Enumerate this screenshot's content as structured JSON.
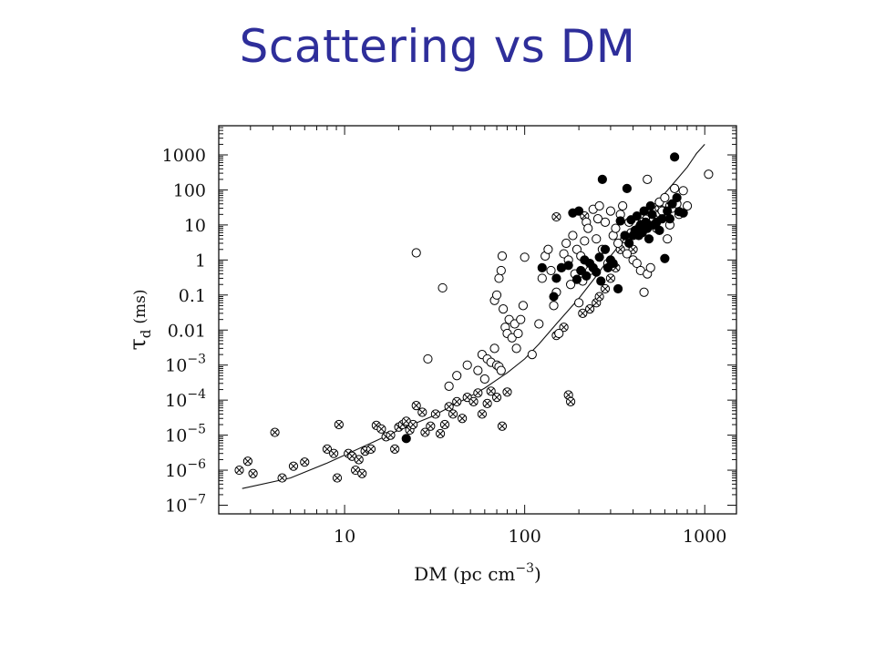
{
  "slide": {
    "title": "Scattering vs DM"
  },
  "chart_data": {
    "type": "scatter",
    "title": "",
    "xlabel": "DM (pc cm",
    "xlabel_sup": "−3",
    "xlabel_close": ")",
    "ylabel": "τ",
    "ylabel_sub": "d",
    "ylabel_unit": "(ms)",
    "xscale": "log",
    "yscale": "log",
    "xlim": [
      2,
      1500
    ],
    "ylim": [
      3e-08,
      5000
    ],
    "x_ticks": [
      {
        "value": 10,
        "label": "10"
      },
      {
        "value": 100,
        "label": "100"
      },
      {
        "value": 1000,
        "label": "1000"
      }
    ],
    "y_ticks": [
      {
        "value": 1000,
        "label": "1000"
      },
      {
        "value": 100,
        "label": "100"
      },
      {
        "value": 10,
        "label": "10"
      },
      {
        "value": 1,
        "label": "1"
      },
      {
        "value": 0.1,
        "label": "0.1"
      },
      {
        "value": 0.01,
        "label": "0.01"
      },
      {
        "value": 0.001,
        "base": "10",
        "exp": "−3"
      },
      {
        "value": 0.0001,
        "base": "10",
        "exp": "−4"
      },
      {
        "value": 1e-05,
        "base": "10",
        "exp": "−5"
      },
      {
        "value": 1e-06,
        "base": "10",
        "exp": "−6"
      },
      {
        "value": 1e-07,
        "base": "10",
        "exp": "−7"
      }
    ],
    "fit_curve": [
      [
        2.7,
        3e-07
      ],
      [
        5,
        6e-07
      ],
      [
        8,
        1.6e-06
      ],
      [
        10,
        2.7e-06
      ],
      [
        15,
        7e-06
      ],
      [
        20,
        1.4e-05
      ],
      [
        30,
        3.3e-05
      ],
      [
        40,
        7e-05
      ],
      [
        50,
        0.00013
      ],
      [
        60,
        0.00022
      ],
      [
        70,
        0.00038
      ],
      [
        80,
        0.0006
      ],
      [
        100,
        0.0015
      ],
      [
        120,
        0.004
      ],
      [
        150,
        0.015
      ],
      [
        200,
        0.08
      ],
      [
        250,
        0.35
      ],
      [
        300,
        1.3
      ],
      [
        400,
        8
      ],
      [
        500,
        30
      ],
      [
        600,
        80
      ],
      [
        700,
        200
      ],
      [
        800,
        450
      ],
      [
        900,
        1100
      ],
      [
        1000,
        2000
      ]
    ],
    "series": [
      {
        "marker": "circle-x",
        "points": [
          [
            2.6,
            1e-06
          ],
          [
            2.9,
            1.8e-06
          ],
          [
            3.1,
            8e-07
          ],
          [
            4.1,
            1.2e-05
          ],
          [
            4.5,
            6e-07
          ],
          [
            5.2,
            1.3e-06
          ],
          [
            6,
            1.7e-06
          ],
          [
            8,
            4e-06
          ],
          [
            8.7,
            3e-06
          ],
          [
            9.1,
            6e-07
          ],
          [
            9.3,
            2e-05
          ],
          [
            10.5,
            3e-06
          ],
          [
            11,
            2.5e-06
          ],
          [
            11.5,
            1e-06
          ],
          [
            12,
            2e-06
          ],
          [
            12.5,
            8e-07
          ],
          [
            13,
            3.5e-06
          ],
          [
            14,
            4e-06
          ],
          [
            15,
            1.9e-05
          ],
          [
            16,
            1.5e-05
          ],
          [
            17,
            9e-06
          ],
          [
            18,
            1e-05
          ],
          [
            19,
            4e-06
          ],
          [
            20,
            1.7e-05
          ],
          [
            21,
            2e-05
          ],
          [
            22,
            2.5e-05
          ],
          [
            23,
            1.4e-05
          ],
          [
            24,
            2e-05
          ],
          [
            25,
            7e-05
          ],
          [
            27,
            4.5e-05
          ],
          [
            28,
            1.2e-05
          ],
          [
            30,
            1.8e-05
          ],
          [
            32,
            4e-05
          ],
          [
            34,
            1.1e-05
          ],
          [
            36,
            2e-05
          ],
          [
            38,
            6.5e-05
          ],
          [
            40,
            4e-05
          ],
          [
            42,
            9e-05
          ],
          [
            45,
            3e-05
          ],
          [
            48,
            0.00012
          ],
          [
            52,
            9e-05
          ],
          [
            55,
            0.00016
          ],
          [
            58,
            4e-05
          ],
          [
            62,
            8e-05
          ],
          [
            65,
            0.00018
          ],
          [
            70,
            0.00012
          ],
          [
            75,
            1.8e-05
          ],
          [
            80,
            0.00017
          ],
          [
            150,
            0.007
          ],
          [
            165,
            0.012
          ],
          [
            175,
            0.00014
          ],
          [
            180,
            9e-05
          ],
          [
            150,
            17
          ],
          [
            215,
            18
          ],
          [
            210,
            0.03
          ],
          [
            230,
            0.04
          ],
          [
            250,
            0.06
          ],
          [
            260,
            0.09
          ],
          [
            280,
            0.15
          ],
          [
            300,
            0.3
          ],
          [
            320,
            0.6
          ],
          [
            340,
            2
          ],
          [
            360,
            4
          ],
          [
            400,
            2
          ],
          [
            420,
            6
          ],
          [
            450,
            12
          ],
          [
            480,
            25
          ],
          [
            520,
            15
          ],
          [
            560,
            30
          ],
          [
            600,
            25
          ],
          [
            640,
            35
          ]
        ]
      },
      {
        "marker": "open-circle",
        "points": [
          [
            25,
            1.6
          ],
          [
            35,
            0.16
          ],
          [
            29,
            0.0015
          ],
          [
            38,
            0.00025
          ],
          [
            42,
            0.0005
          ],
          [
            48,
            0.001
          ],
          [
            55,
            0.0007
          ],
          [
            58,
            0.002
          ],
          [
            60,
            0.0004
          ],
          [
            62,
            0.0015
          ],
          [
            65,
            0.0012
          ],
          [
            68,
            0.003
          ],
          [
            70,
            0.001
          ],
          [
            72,
            0.0009
          ],
          [
            74,
            0.0007
          ],
          [
            68,
            0.07
          ],
          [
            70,
            0.1
          ],
          [
            72,
            0.3
          ],
          [
            74,
            0.5
          ],
          [
            75,
            1.3
          ],
          [
            76,
            0.04
          ],
          [
            78,
            0.012
          ],
          [
            80,
            0.008
          ],
          [
            82,
            0.02
          ],
          [
            85,
            0.006
          ],
          [
            88,
            0.015
          ],
          [
            90,
            0.003
          ],
          [
            92,
            0.008
          ],
          [
            95,
            0.02
          ],
          [
            98,
            0.05
          ],
          [
            100,
            1.2
          ],
          [
            110,
            0.002
          ],
          [
            120,
            0.015
          ],
          [
            125,
            0.3
          ],
          [
            130,
            1.3
          ],
          [
            135,
            2
          ],
          [
            140,
            0.5
          ],
          [
            145,
            0.05
          ],
          [
            150,
            0.12
          ],
          [
            155,
            0.008
          ],
          [
            160,
            0.6
          ],
          [
            165,
            1.5
          ],
          [
            170,
            3
          ],
          [
            175,
            1
          ],
          [
            180,
            0.2
          ],
          [
            185,
            5
          ],
          [
            190,
            0.4
          ],
          [
            195,
            2
          ],
          [
            200,
            0.06
          ],
          [
            205,
            1.3
          ],
          [
            210,
            0.25
          ],
          [
            215,
            3.5
          ],
          [
            220,
            12
          ],
          [
            225,
            8
          ],
          [
            230,
            0.5
          ],
          [
            240,
            28
          ],
          [
            250,
            4
          ],
          [
            255,
            15
          ],
          [
            260,
            35
          ],
          [
            270,
            2
          ],
          [
            280,
            12
          ],
          [
            290,
            0.8
          ],
          [
            300,
            25
          ],
          [
            310,
            5
          ],
          [
            320,
            8
          ],
          [
            330,
            3
          ],
          [
            340,
            20
          ],
          [
            350,
            35
          ],
          [
            370,
            1.5
          ],
          [
            380,
            12
          ],
          [
            390,
            6
          ],
          [
            400,
            1
          ],
          [
            420,
            0.8
          ],
          [
            440,
            0.5
          ],
          [
            460,
            0.12
          ],
          [
            480,
            0.4
          ],
          [
            500,
            0.6
          ],
          [
            520,
            15
          ],
          [
            540,
            8
          ],
          [
            560,
            45
          ],
          [
            580,
            25
          ],
          [
            600,
            60
          ],
          [
            620,
            4
          ],
          [
            640,
            10
          ],
          [
            660,
            30
          ],
          [
            680,
            110
          ],
          [
            700,
            40
          ],
          [
            720,
            20
          ],
          [
            760,
            95
          ],
          [
            800,
            35
          ],
          [
            1050,
            280
          ],
          [
            480,
            200
          ]
        ]
      },
      {
        "marker": "filled-circle",
        "points": [
          [
            22,
            8e-06
          ],
          [
            125,
            0.6
          ],
          [
            145,
            0.09
          ],
          [
            150,
            0.3
          ],
          [
            160,
            0.6
          ],
          [
            175,
            0.7
          ],
          [
            185,
            22
          ],
          [
            195,
            0.28
          ],
          [
            200,
            25
          ],
          [
            205,
            0.5
          ],
          [
            215,
            1
          ],
          [
            220,
            0.35
          ],
          [
            230,
            0.8
          ],
          [
            240,
            0.6
          ],
          [
            250,
            0.45
          ],
          [
            260,
            1.2
          ],
          [
            265,
            0.25
          ],
          [
            270,
            200
          ],
          [
            280,
            2
          ],
          [
            290,
            0.6
          ],
          [
            300,
            1
          ],
          [
            310,
            0.8
          ],
          [
            330,
            0.15
          ],
          [
            340,
            13
          ],
          [
            360,
            5
          ],
          [
            370,
            110
          ],
          [
            380,
            3
          ],
          [
            390,
            14
          ],
          [
            400,
            5
          ],
          [
            410,
            7
          ],
          [
            420,
            18
          ],
          [
            430,
            5
          ],
          [
            440,
            10
          ],
          [
            450,
            6
          ],
          [
            460,
            25
          ],
          [
            470,
            12
          ],
          [
            480,
            8
          ],
          [
            490,
            4
          ],
          [
            500,
            35
          ],
          [
            510,
            20
          ],
          [
            520,
            10
          ],
          [
            540,
            12
          ],
          [
            560,
            7
          ],
          [
            580,
            15
          ],
          [
            600,
            1.1
          ],
          [
            620,
            25
          ],
          [
            640,
            15
          ],
          [
            660,
            40
          ],
          [
            680,
            870
          ],
          [
            700,
            60
          ],
          [
            720,
            24
          ],
          [
            760,
            22
          ]
        ]
      }
    ]
  }
}
